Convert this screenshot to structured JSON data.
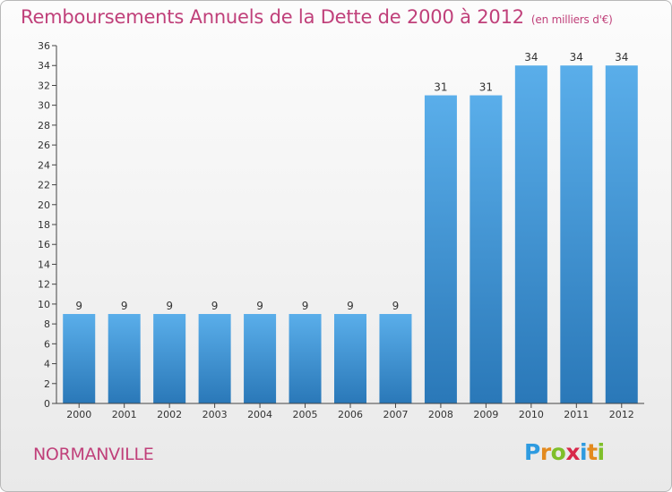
{
  "title": "Remboursements Annuels de la Dette de 2000 à 2012",
  "unit": "(en milliers d'€)",
  "commune": "NORMANVILLE",
  "logo": {
    "text": "Proxiti",
    "letters": [
      {
        "ch": "P",
        "color": "#2e9be0"
      },
      {
        "ch": "r",
        "color": "#e38a1e"
      },
      {
        "ch": "o",
        "color": "#7fbf2a"
      },
      {
        "ch": "x",
        "color": "#d8284a"
      },
      {
        "ch": "i",
        "color": "#2e9be0"
      },
      {
        "ch": "t",
        "color": "#e38a1e"
      },
      {
        "ch": "i",
        "color": "#7fbf2a"
      }
    ]
  },
  "chart_data": {
    "type": "bar",
    "title": "Remboursements Annuels de la Dette de 2000 à 2012",
    "ylabel": "(en milliers d'€)",
    "xlabel": "",
    "categories": [
      "2000",
      "2001",
      "2002",
      "2003",
      "2004",
      "2005",
      "2006",
      "2007",
      "2008",
      "2009",
      "2010",
      "2011",
      "2012"
    ],
    "values": [
      9,
      9,
      9,
      9,
      9,
      9,
      9,
      9,
      31,
      31,
      34,
      34,
      34
    ],
    "ylim": [
      0,
      36
    ],
    "yticks": [
      0,
      2,
      4,
      6,
      8,
      10,
      12,
      14,
      16,
      18,
      20,
      22,
      24,
      26,
      28,
      30,
      32,
      34,
      36
    ],
    "grid": false,
    "bar_color_top": "#5aaeea",
    "bar_color_bottom": "#2a78b8"
  }
}
